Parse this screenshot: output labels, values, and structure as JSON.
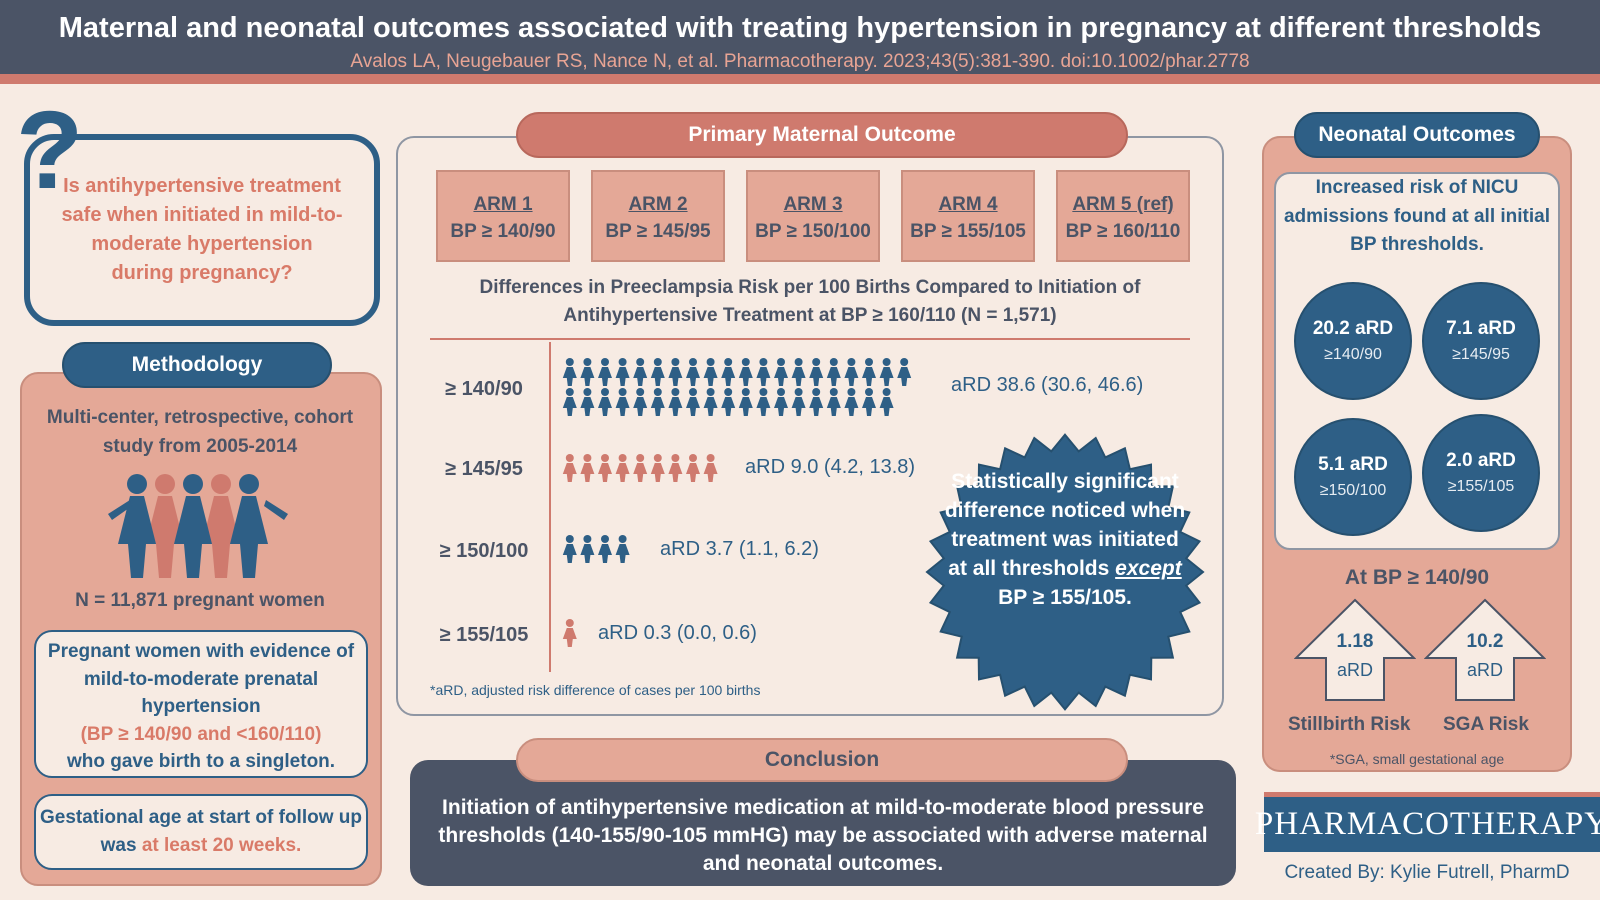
{
  "header": {
    "title": "Maternal and neonatal outcomes associated with treating hypertension in pregnancy at different thresholds",
    "citation": "Avalos LA, Neugebauer RS, Nance N, et al. Pharmacotherapy. 2023;43(5):381-390. doi:10.1002/phar.2778"
  },
  "question": {
    "symbol": "?",
    "text": "Is antihypertensive treatment safe when initiated in mild-to-moderate hypertension during pregnancy?"
  },
  "methodology": {
    "title": "Methodology",
    "design": "Multi-center, retrospective, cohort study from 2005-2014",
    "n": "N = 11,871 pregnant women",
    "criteria_1": "Pregnant women with evidence of mild-to-moderate prenatal hypertension",
    "criteria_2": "(BP ≥ 140/90 and <160/110)",
    "criteria_3": "who gave birth to a singleton.",
    "gest_1": "Gestational age at start of follow up was ",
    "gest_2": "at least 20 weeks."
  },
  "primary": {
    "title": "Primary Maternal Outcome",
    "arms": [
      {
        "name": "ARM 1",
        "bp": "BP ≥ 140/90"
      },
      {
        "name": "ARM 2",
        "bp": "BP ≥ 145/95"
      },
      {
        "name": "ARM 3",
        "bp": "BP ≥ 150/100"
      },
      {
        "name": "ARM 4",
        "bp": "BP ≥ 155/105"
      },
      {
        "name": "ARM 5 (ref)",
        "bp": "BP ≥ 160/110"
      }
    ],
    "diff_title": "Differences in Preeclampsia Risk per 100 Births Compared to Initiation of Antihypertensive Treatment at BP ≥ 160/110 (N = 1,571)",
    "rows": [
      {
        "label": "≥ 140/90",
        "ard": "aRD  38.6 (30.6, 46.6)",
        "value": 38.6
      },
      {
        "label": "≥ 145/95",
        "ard": "aRD  9.0 (4.2, 13.8)",
        "value": 9.0
      },
      {
        "label": "≥ 150/100",
        "ard": "aRD  3.7 (1.1, 6.2)",
        "value": 3.7
      },
      {
        "label": "≥ 155/105",
        "ard": "aRD  0.3 (0.0, 0.6)",
        "value": 0.3
      }
    ],
    "footnote": "*aRD, adjusted risk difference of cases per 100 births",
    "callout_1": "Statistically significant difference noticed when treatment was initiated at all thresholds ",
    "callout_except": "except",
    "callout_2": " BP ≥ 155/105."
  },
  "conclusion": {
    "title": "Conclusion",
    "text": "Initiation of antihypertensive medication at mild-to-moderate blood pressure thresholds (140-155/90-105 mmHG) may be associated with adverse maternal and neonatal outcomes."
  },
  "neonatal": {
    "title": "Neonatal Outcomes",
    "nicu": "Increased risk of NICU admissions found at all initial BP thresholds.",
    "circles": [
      {
        "value": "20.2 aRD",
        "bp": "≥140/90"
      },
      {
        "value": "7.1 aRD",
        "bp": "≥145/95"
      },
      {
        "value": "5.1 aRD",
        "bp": "≥150/100"
      },
      {
        "value": "2.0 aRD",
        "bp": "≥155/105"
      }
    ],
    "at_bp": "At BP ≥ 140/90",
    "stillbirth": {
      "value": "1.18",
      "unit": "aRD",
      "label": "Stillbirth Risk"
    },
    "sga": {
      "value": "10.2",
      "unit": "aRD",
      "label": "SGA Risk"
    },
    "note": "*SGA, small gestational age"
  },
  "brand": {
    "logo": "PHARMACOTHERAPY",
    "credit": "Created By: Kylie Futrell, PharmD"
  },
  "colors": {
    "navy": "#4b5466",
    "blue": "#2e5f86",
    "salmon": "#cf7a6e",
    "peach": "#e4a897",
    "cream": "#f7ebe3"
  }
}
